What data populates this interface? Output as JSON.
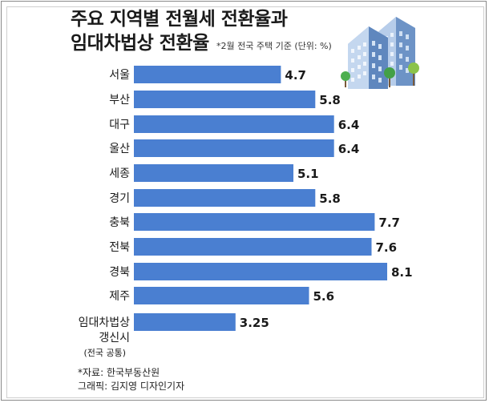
{
  "title_line1": "주요 지역별 전월세 전환율과",
  "title_line2": "임대차법상 전환율",
  "note": "*2월 전국 주택 기준 (단위: %)",
  "source": "*자료: 한국부동산원",
  "credit": "그래픽: 김지영 디자인기자",
  "colors": {
    "bar": "#4a7fd1",
    "text": "#1a1a1a"
  },
  "illustration": "apartment-buildings-with-trees-icon",
  "chart_data": {
    "type": "bar",
    "orientation": "horizontal",
    "categories": [
      "서울",
      "부산",
      "대구",
      "울산",
      "세종",
      "경기",
      "충북",
      "전북",
      "경북",
      "제주",
      "임대차법상 갱신시 (전국 공통)"
    ],
    "category_lines": [
      [
        "서울"
      ],
      [
        "부산"
      ],
      [
        "대구"
      ],
      [
        "울산"
      ],
      [
        "세종"
      ],
      [
        "경기"
      ],
      [
        "충북"
      ],
      [
        "전북"
      ],
      [
        "경북"
      ],
      [
        "제주"
      ],
      [
        "임대차법상",
        "갱신시",
        "(전국 공통)"
      ]
    ],
    "values": [
      4.7,
      5.8,
      6.4,
      6.4,
      5.1,
      5.8,
      7.7,
      7.6,
      8.1,
      5.6,
      3.25
    ],
    "value_labels": [
      "4.7",
      "5.8",
      "6.4",
      "6.4",
      "5.1",
      "5.8",
      "7.7",
      "7.6",
      "8.1",
      "5.6",
      "3.25"
    ],
    "xlim": [
      0,
      8.1
    ],
    "legend": "none",
    "grid": false
  }
}
